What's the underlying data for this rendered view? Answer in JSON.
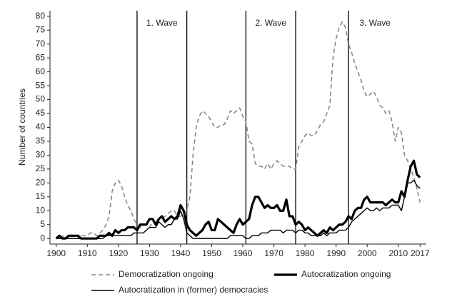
{
  "chart_data": {
    "type": "line",
    "y_label": "Number of countries",
    "x": [
      1900,
      1901,
      1902,
      1903,
      1904,
      1905,
      1906,
      1907,
      1908,
      1909,
      1910,
      1911,
      1912,
      1913,
      1914,
      1915,
      1916,
      1917,
      1918,
      1919,
      1920,
      1921,
      1922,
      1923,
      1924,
      1925,
      1926,
      1927,
      1928,
      1929,
      1930,
      1931,
      1932,
      1933,
      1934,
      1935,
      1936,
      1937,
      1938,
      1939,
      1940,
      1941,
      1942,
      1943,
      1944,
      1945,
      1946,
      1947,
      1948,
      1949,
      1950,
      1951,
      1952,
      1953,
      1954,
      1955,
      1956,
      1957,
      1958,
      1959,
      1960,
      1961,
      1962,
      1963,
      1964,
      1965,
      1966,
      1967,
      1968,
      1969,
      1970,
      1971,
      1972,
      1973,
      1974,
      1975,
      1976,
      1977,
      1978,
      1979,
      1980,
      1981,
      1982,
      1983,
      1984,
      1985,
      1986,
      1987,
      1988,
      1989,
      1990,
      1991,
      1992,
      1993,
      1994,
      1995,
      1996,
      1997,
      1998,
      1999,
      2000,
      2001,
      2002,
      2003,
      2004,
      2005,
      2006,
      2007,
      2008,
      2009,
      2010,
      2011,
      2012,
      2013,
      2014,
      2015,
      2016,
      2017
    ],
    "series": [
      {
        "name": "Democratization ongoing",
        "color": "#888888",
        "width": 1.6,
        "dash": true,
        "values": [
          0,
          0,
          1,
          0,
          0,
          0,
          0,
          0,
          1,
          1,
          1,
          2,
          2,
          1,
          2,
          3,
          5,
          8,
          17,
          20,
          21,
          19,
          15,
          12,
          10,
          7,
          5,
          4,
          5,
          5,
          4,
          6,
          5,
          7,
          7,
          8,
          9,
          10,
          10,
          8,
          8,
          9,
          10,
          15,
          30,
          40,
          44,
          46,
          45,
          44,
          42,
          40,
          40,
          41,
          41,
          43,
          46,
          45,
          46,
          47,
          44,
          42,
          35,
          34,
          27,
          26,
          26,
          25,
          27,
          25,
          27,
          28,
          27,
          26,
          26,
          26,
          25,
          25,
          33,
          35,
          37,
          38,
          37,
          37,
          39,
          41,
          42,
          45,
          48,
          65,
          72,
          76,
          78,
          76,
          70,
          67,
          63,
          60,
          57,
          53,
          51,
          52,
          53,
          51,
          48,
          47,
          45,
          46,
          42,
          35,
          40,
          38,
          30,
          28,
          25,
          22,
          18,
          13
        ]
      },
      {
        "name": "Autocratization ongoing",
        "color": "#000000",
        "width": 3.2,
        "dash": false,
        "values": [
          0,
          1,
          0,
          0,
          1,
          1,
          1,
          1,
          0,
          0,
          0,
          0,
          0,
          0,
          1,
          1,
          1,
          2,
          1,
          3,
          2,
          3,
          3,
          4,
          4,
          4,
          3,
          5,
          5,
          5,
          7,
          7,
          5,
          7,
          8,
          6,
          7,
          8,
          7,
          8,
          12,
          10,
          5,
          3,
          2,
          1,
          2,
          3,
          5,
          6,
          3,
          3,
          7,
          6,
          5,
          4,
          3,
          2,
          5,
          7,
          5,
          6,
          7,
          12,
          15,
          15,
          13,
          11,
          12,
          11,
          11,
          12,
          10,
          10,
          14,
          8,
          8,
          5,
          6,
          5,
          3,
          4,
          3,
          2,
          1,
          2,
          3,
          2,
          4,
          3,
          4,
          5,
          5,
          6,
          8,
          7,
          10,
          11,
          11,
          14,
          15,
          13,
          13,
          13,
          13,
          13,
          12,
          13,
          14,
          13,
          13,
          17,
          15,
          21,
          26,
          28,
          23,
          22
        ]
      },
      {
        "name": "Autocratization in (former) democracies",
        "color": "#000000",
        "width": 1.4,
        "dash": false,
        "values": [
          0,
          0,
          0,
          0,
          0,
          0,
          0,
          0,
          0,
          0,
          0,
          0,
          0,
          0,
          0,
          0,
          1,
          1,
          1,
          1,
          1,
          1,
          1,
          1,
          1,
          2,
          2,
          2,
          2,
          3,
          4,
          4,
          4,
          6,
          5,
          4,
          5,
          5,
          7,
          7,
          10,
          7,
          2,
          1,
          0,
          0,
          0,
          0,
          0,
          0,
          0,
          0,
          0,
          0,
          0,
          0,
          1,
          1,
          1,
          1,
          1,
          0,
          0,
          1,
          1,
          1,
          2,
          2,
          2,
          3,
          3,
          3,
          3,
          2,
          3,
          3,
          3,
          2,
          3,
          3,
          2,
          2,
          1,
          1,
          1,
          1,
          2,
          1,
          2,
          2,
          2,
          3,
          3,
          3,
          4,
          6,
          7,
          8,
          9,
          10,
          11,
          10,
          10,
          11,
          10,
          11,
          11,
          11,
          12,
          12,
          12,
          10,
          15,
          20,
          20,
          21,
          19,
          18
        ]
      }
    ],
    "xlim": [
      1898,
      2019
    ],
    "xticks": [
      1900,
      1910,
      1920,
      1930,
      1940,
      1950,
      1960,
      1970,
      1980,
      1990,
      2000,
      2010,
      2017
    ],
    "ylim": [
      -2,
      82
    ],
    "yticks": [
      0,
      5,
      10,
      15,
      20,
      25,
      30,
      35,
      40,
      45,
      50,
      55,
      60,
      65,
      70,
      75,
      80
    ],
    "vlines": [
      1926,
      1942,
      1961,
      1977,
      1994
    ],
    "annotations": [
      {
        "text": "1. Wave",
        "x": 1934
      },
      {
        "text": "2. Wave",
        "x": 1969
      },
      {
        "text": "3. Wave",
        "x": 2002.5
      }
    ]
  }
}
